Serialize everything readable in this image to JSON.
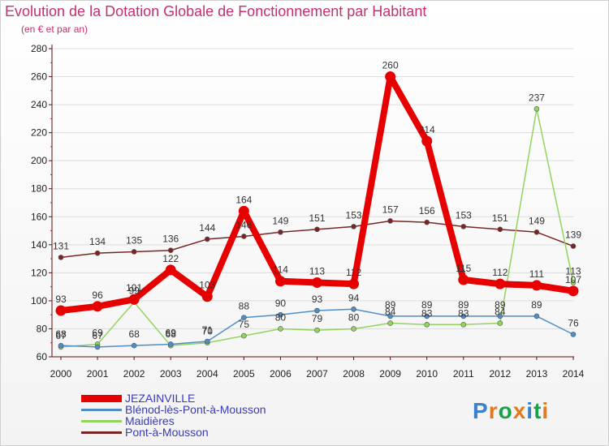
{
  "header": {
    "title": "Evolution de la Dotation Globale de Fonctionnement par Habitant",
    "subtitle": "(en € et par an)"
  },
  "brand": {
    "name": "Proxiti"
  },
  "colors": {
    "title": "#c4306f",
    "axis": "#5a0f0f",
    "legend_text": "#3a3ac0",
    "grid": "#dddddd"
  },
  "chart_data": {
    "type": "line",
    "title": "Evolution de la Dotation Globale de Fonctionnement par Habitant",
    "subtitle": "(en € et par an)",
    "xlabel": "",
    "ylabel": "",
    "x": [
      "2000",
      "2001",
      "2002",
      "2003",
      "2004",
      "2005",
      "2006",
      "2007",
      "2008",
      "2009",
      "2010",
      "2011",
      "2012",
      "2013",
      "2014"
    ],
    "ylim": [
      60,
      280
    ],
    "yticks": [
      60,
      80,
      100,
      120,
      140,
      160,
      180,
      200,
      220,
      240,
      260,
      280
    ],
    "grid": "horizontal",
    "legend_position": "bottom-left",
    "series": [
      {
        "name": "Pont-à-Mousson",
        "color": "#7a2525",
        "values": [
          131,
          134,
          135,
          136,
          144,
          146,
          149,
          151,
          153,
          157,
          156,
          153,
          151,
          149,
          139
        ],
        "labels": [
          "131",
          "134",
          "135",
          "136",
          "144",
          "146",
          "149",
          "151",
          "153",
          "157",
          "156",
          "153",
          "151",
          "149",
          "139"
        ]
      },
      {
        "name": "Maidières",
        "color": "#93d35f",
        "values": [
          67,
          69,
          99,
          68,
          70,
          75,
          80,
          79,
          80,
          84,
          83,
          83,
          84,
          237,
          113
        ],
        "labels": [
          "67",
          "69",
          "99",
          "68",
          "70",
          "75",
          "80",
          "79",
          "80",
          "84",
          "83",
          "83",
          "84",
          "237",
          "113"
        ]
      },
      {
        "name": "Blénod-lès-Pont-à-Mousson",
        "color": "#4f8ec5",
        "values": [
          68,
          67,
          68,
          69,
          71,
          88,
          90,
          93,
          94,
          89,
          89,
          89,
          89,
          89,
          76
        ],
        "labels": [
          "68",
          "67",
          "68",
          "69",
          "71",
          "88",
          "90",
          "93",
          "94",
          "89",
          "89",
          "89",
          "89",
          "89",
          "76"
        ]
      },
      {
        "name": "JEZAINVILLE",
        "color": "#e60000",
        "values": [
          93,
          96,
          101,
          122,
          103,
          164,
          114,
          113,
          112,
          260,
          214,
          115,
          112,
          111,
          107
        ],
        "labels": [
          "93",
          "96",
          "101",
          "122",
          "103",
          "164",
          "114",
          "113",
          "112",
          "260",
          "214",
          "115",
          "112",
          "111",
          "107"
        ]
      }
    ]
  }
}
